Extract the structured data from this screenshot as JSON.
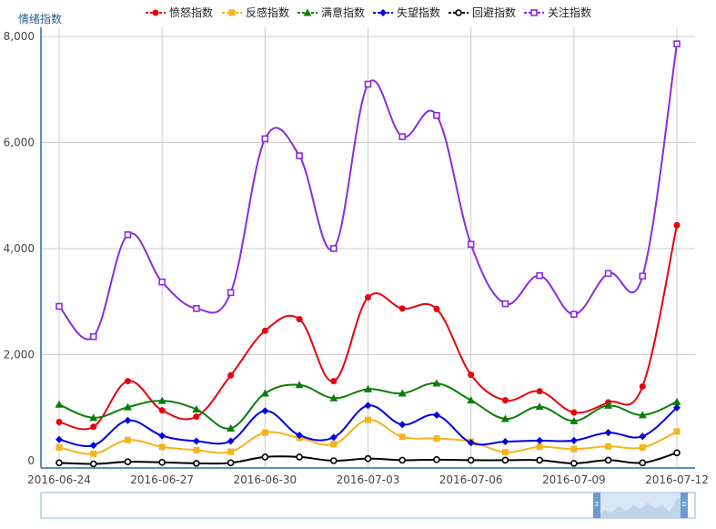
{
  "chart_data": {
    "type": "line",
    "ylabel": "情绪指数",
    "yticks": [
      0,
      2000,
      4000,
      6000,
      8000
    ],
    "ytick_labels": [
      "0",
      "2,000",
      "4,000",
      "6,000",
      "8,000"
    ],
    "ylim": [
      0,
      8000
    ],
    "x_tick_labels": [
      "2016-06-24",
      "2016-06-27",
      "2016-06-30",
      "2016-07-03",
      "2016-07-06",
      "2016-07-09",
      "2016-07-12"
    ],
    "x": [
      "2016-06-24",
      "2016-06-25",
      "2016-06-26",
      "2016-06-27",
      "2016-06-28",
      "2016-06-29",
      "2016-06-30",
      "2016-07-01",
      "2016-07-02",
      "2016-07-03",
      "2016-07-04",
      "2016-07-05",
      "2016-07-06",
      "2016-07-07",
      "2016-07-08",
      "2016-07-09",
      "2016-07-10",
      "2016-07-11",
      "2016-07-12"
    ],
    "legend_position": "top-center",
    "grid": true,
    "series": [
      {
        "name": "愤怒指数",
        "color": "#e8000b",
        "marker": "circle",
        "values": [
          730,
          640,
          1500,
          950,
          830,
          1610,
          2450,
          2670,
          1500,
          3080,
          2870,
          2860,
          1620,
          1140,
          1310,
          910,
          1100,
          1400,
          4440
        ]
      },
      {
        "name": "反感指数",
        "color": "#f5b41b",
        "marker": "square",
        "values": [
          250,
          130,
          390,
          260,
          200,
          170,
          530,
          430,
          310,
          770,
          450,
          420,
          360,
          160,
          260,
          220,
          270,
          250,
          550
        ]
      },
      {
        "name": "满意指数",
        "color": "#0a7d0a",
        "marker": "triangle",
        "values": [
          1060,
          810,
          1010,
          1130,
          970,
          610,
          1270,
          1430,
          1180,
          1350,
          1270,
          1460,
          1140,
          790,
          1020,
          750,
          1040,
          860,
          1110
        ]
      },
      {
        "name": "失望指数",
        "color": "#0000e0",
        "marker": "diamond",
        "values": [
          400,
          290,
          760,
          470,
          370,
          370,
          940,
          480,
          440,
          1040,
          680,
          860,
          340,
          360,
          380,
          380,
          530,
          460,
          1000
        ]
      },
      {
        "name": "回避指数",
        "color": "#000000",
        "marker": "circle-hollow",
        "values": [
          -40,
          -60,
          -20,
          -30,
          -50,
          -40,
          70,
          70,
          0,
          40,
          10,
          20,
          10,
          10,
          10,
          -50,
          10,
          -40,
          150
        ]
      },
      {
        "name": "关注指数",
        "color": "#8a2be2",
        "marker": "square-hollow",
        "values": [
          2910,
          2340,
          4260,
          3370,
          2870,
          3170,
          6070,
          5750,
          4000,
          7100,
          6110,
          6510,
          4080,
          2960,
          3490,
          2760,
          3530,
          3480,
          7860
        ]
      }
    ]
  }
}
